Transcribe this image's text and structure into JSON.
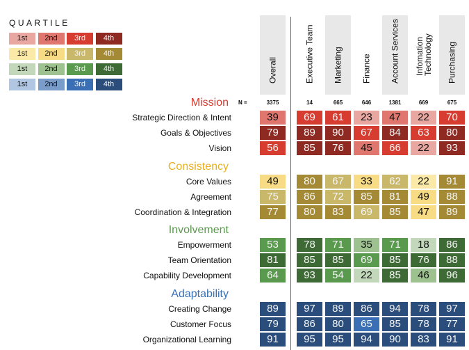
{
  "chart_data": {
    "type": "heatmap",
    "legend_title": "QUARTILE",
    "legend_labels": [
      "1st",
      "2nd",
      "3rd",
      "4th"
    ],
    "n_label": "N =",
    "columns": [
      {
        "name": "Overall",
        "n": "3375",
        "shaded": true
      },
      {
        "name": "Executive Team",
        "n": "14",
        "shaded": false
      },
      {
        "name": "Marketing",
        "n": "665",
        "shaded": true
      },
      {
        "name": "Finance",
        "n": "646",
        "shaded": false
      },
      {
        "name": "Account Services",
        "n": "1381",
        "shaded": true
      },
      {
        "name": "Infomation Technology",
        "n": "669",
        "shaded": false
      },
      {
        "name": "Purchasing",
        "n": "675",
        "shaded": true
      }
    ],
    "palettes": {
      "red": [
        "#e8a8a1",
        "#e0776f",
        "#d63c30",
        "#8e2a22"
      ],
      "yellow": [
        "#fbe9a8",
        "#f7db85",
        "#c9b76a",
        "#a48a35"
      ],
      "green": [
        "#c3d7bb",
        "#9dc18f",
        "#5a9a4e",
        "#3e6a35"
      ],
      "blue": [
        "#b0c6e2",
        "#7a9ccb",
        "#3a6fb5",
        "#2a4d7c"
      ]
    },
    "sections": [
      {
        "title": "Mission",
        "color": "#d63c30",
        "palette": "red",
        "rows": [
          {
            "label": "Strategic Direction & Intent",
            "values": [
              39,
              69,
              61,
              23,
              47,
              22,
              70
            ],
            "quartiles": [
              2,
              3,
              3,
              1,
              2,
              1,
              3
            ]
          },
          {
            "label": "Goals & Objectives",
            "values": [
              79,
              89,
              90,
              67,
              84,
              63,
              80
            ],
            "quartiles": [
              4,
              4,
              4,
              3,
              4,
              3,
              4
            ]
          },
          {
            "label": "Vision",
            "values": [
              56,
              85,
              76,
              45,
              66,
              22,
              93
            ],
            "quartiles": [
              3,
              4,
              4,
              2,
              3,
              1,
              4
            ]
          }
        ]
      },
      {
        "title": "Consistency",
        "color": "#e8b020",
        "palette": "yellow",
        "rows": [
          {
            "label": "Core Values",
            "values": [
              49,
              80,
              67,
              33,
              62,
              22,
              91
            ],
            "quartiles": [
              2,
              4,
              3,
              2,
              3,
              1,
              4
            ]
          },
          {
            "label": "Agreement",
            "values": [
              75,
              86,
              72,
              85,
              81,
              49,
              88
            ],
            "quartiles": [
              3,
              4,
              3,
              4,
              4,
              2,
              4
            ]
          },
          {
            "label": "Coordination & Integration",
            "values": [
              77,
              80,
              83,
              69,
              85,
              47,
              89
            ],
            "quartiles": [
              4,
              4,
              4,
              3,
              4,
              2,
              4
            ]
          }
        ]
      },
      {
        "title": "Involvement",
        "color": "#5a9a4e",
        "palette": "green",
        "rows": [
          {
            "label": "Empowerment",
            "values": [
              53,
              78,
              71,
              35,
              71,
              18,
              86
            ],
            "quartiles": [
              3,
              4,
              3,
              2,
              3,
              1,
              4
            ]
          },
          {
            "label": "Team Orientation",
            "values": [
              81,
              85,
              85,
              69,
              85,
              76,
              88
            ],
            "quartiles": [
              4,
              4,
              4,
              3,
              4,
              4,
              4
            ]
          },
          {
            "label": "Capability Development",
            "values": [
              64,
              93,
              54,
              22,
              85,
              46,
              96
            ],
            "quartiles": [
              3,
              4,
              3,
              1,
              4,
              2,
              4
            ]
          }
        ]
      },
      {
        "title": "Adaptability",
        "color": "#3a6fb5",
        "palette": "blue",
        "rows": [
          {
            "label": "Creating Change",
            "values": [
              89,
              97,
              89,
              86,
              94,
              78,
              97
            ],
            "quartiles": [
              4,
              4,
              4,
              4,
              4,
              4,
              4
            ]
          },
          {
            "label": "Customer Focus",
            "values": [
              79,
              86,
              80,
              65,
              85,
              78,
              77
            ],
            "quartiles": [
              4,
              4,
              4,
              3,
              4,
              4,
              4
            ]
          },
          {
            "label": "Organizational Learning",
            "values": [
              91,
              95,
              95,
              94,
              90,
              83,
              91
            ],
            "quartiles": [
              4,
              4,
              4,
              4,
              4,
              4,
              4
            ]
          }
        ]
      }
    ]
  }
}
